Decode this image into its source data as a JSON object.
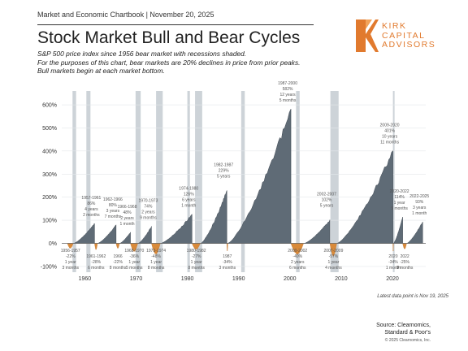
{
  "header": {
    "chartbook_line": "Market and Economic Chartbook | November 20, 2025",
    "title": "Stock Market Bull and Bear Cycles",
    "subtitle_lines": [
      "S&P 500 price index since 1956 bear market with recessions shaded.",
      "For the purposes of this chart, bear markets are 20% declines in price from prior peaks.",
      "Bull markets begin at each market bottom."
    ]
  },
  "logo": {
    "lines": [
      "KIRK",
      "CAPITAL",
      "ADVISORS"
    ]
  },
  "footnote": "Latest data point is Nov 19, 2025",
  "source": {
    "lines": [
      "Source: Clearnomics,",
      "Standard & Poor's"
    ],
    "copyright": "© 2025 Clearnomics, Inc."
  },
  "colors": {
    "bull": "#5f6b76",
    "bear": "#d98a3a",
    "recession": "#cdd3d8",
    "accent": "#e17a2e"
  },
  "chart_data": {
    "type": "area",
    "ylim": [
      -125,
      660
    ],
    "xlim": [
      1955.5,
      2026.5
    ],
    "y_ticks": [
      -100,
      0,
      100,
      200,
      300,
      400,
      500,
      600
    ],
    "y_tick_labels": [
      "-100%",
      "0%",
      "100%",
      "200%",
      "300%",
      "400%",
      "500%",
      "600%"
    ],
    "x_ticks": [
      1960,
      1970,
      1980,
      1990,
      2000,
      2010,
      2020
    ],
    "x_tick_labels": [
      "1960",
      "1970",
      "1980",
      "1990",
      "2000",
      "2010",
      "2020"
    ],
    "recessions": [
      [
        1957.6,
        1958.3
      ],
      [
        1960.3,
        1961.1
      ],
      [
        1969.9,
        1970.9
      ],
      [
        1973.9,
        1975.2
      ],
      [
        1980.0,
        1980.5
      ],
      [
        1981.5,
        1982.9
      ],
      [
        1990.5,
        1991.2
      ],
      [
        2001.2,
        2001.9
      ],
      [
        2007.9,
        2009.5
      ],
      [
        2020.1,
        2020.4
      ]
    ],
    "bull_markets": [
      {
        "start": 1957.8,
        "end": 1961.9,
        "peak": 86,
        "label_lines": [
          "1957-1961",
          "86%",
          "4 years",
          "2 months"
        ]
      },
      {
        "start": 1962.5,
        "end": 1966.1,
        "peak": 80,
        "label_lines": [
          "1962-1966",
          "80%",
          "3 years",
          "7 months"
        ]
      },
      {
        "start": 1966.8,
        "end": 1968.9,
        "peak": 48,
        "label_lines": [
          "1966-1968",
          "48%",
          "2 years",
          "1 month"
        ]
      },
      {
        "start": 1970.4,
        "end": 1973.0,
        "peak": 74,
        "label_lines": [
          "1970-1973",
          "74%",
          "2 years",
          "9 months"
        ]
      },
      {
        "start": 1974.8,
        "end": 1980.9,
        "peak": 126,
        "label_lines": [
          "1974-1980",
          "126%",
          "6 years",
          "1 month"
        ]
      },
      {
        "start": 1982.6,
        "end": 1987.7,
        "peak": 229,
        "label_lines": [
          "1982-1987",
          "229%",
          "5 years"
        ]
      },
      {
        "start": 1987.9,
        "end": 2000.2,
        "peak": 582,
        "label_lines": [
          "1987-2000",
          "582%",
          "12 years",
          "5 months"
        ]
      },
      {
        "start": 2002.8,
        "end": 2007.8,
        "peak": 102,
        "label_lines": [
          "2002-2007",
          "102%",
          "5 years"
        ]
      },
      {
        "start": 2009.2,
        "end": 2020.1,
        "peak": 401,
        "label_lines": [
          "2009-2020",
          "401%",
          "10 years",
          "11 months"
        ]
      },
      {
        "start": 2020.2,
        "end": 2022.0,
        "peak": 114,
        "label_lines": [
          "2020-2022",
          "114%",
          "1 year",
          "9 months"
        ]
      },
      {
        "start": 2022.8,
        "end": 2025.9,
        "peak": 93,
        "label_lines": [
          "2022-2025",
          "93%",
          "3 years",
          "1 month"
        ]
      }
    ],
    "bear_markets": [
      {
        "start": 1956.6,
        "end": 1957.8,
        "trough": -22,
        "label_lines": [
          "1956-1957",
          "-22%",
          "1 year",
          "3 months"
        ]
      },
      {
        "start": 1961.9,
        "end": 1962.5,
        "trough": -28,
        "label_lines": [
          "1961-1962",
          "-28%",
          "6 months"
        ]
      },
      {
        "start": 1966.1,
        "end": 1966.8,
        "trough": -22,
        "label_lines": [
          "1966",
          "-22%",
          "8 months"
        ]
      },
      {
        "start": 1968.9,
        "end": 1970.4,
        "trough": -36,
        "label_lines": [
          "1968-1970",
          "-36%",
          "1 year",
          "5 months"
        ]
      },
      {
        "start": 1973.0,
        "end": 1974.8,
        "trough": -48,
        "label_lines": [
          "1973-1974",
          "-48%",
          "1 year",
          "8 months"
        ]
      },
      {
        "start": 1980.9,
        "end": 1982.6,
        "trough": -27,
        "label_lines": [
          "1980-1982",
          "-27%",
          "1 year",
          "8 months"
        ]
      },
      {
        "start": 1987.7,
        "end": 1987.9,
        "trough": -34,
        "label_lines": [
          "1987",
          "-34%",
          "3 months"
        ]
      },
      {
        "start": 2000.2,
        "end": 2002.8,
        "trough": -49,
        "label_lines": [
          "2000-2002",
          "-49%",
          "2 years",
          "6 months"
        ]
      },
      {
        "start": 2007.8,
        "end": 2009.2,
        "trough": -57,
        "label_lines": [
          "2007-2009",
          "-57%",
          "1 year",
          "4 months"
        ]
      },
      {
        "start": 2020.1,
        "end": 2020.2,
        "trough": -34,
        "label_lines": [
          "2020",
          "-34%",
          "1 month"
        ]
      },
      {
        "start": 2022.0,
        "end": 2022.8,
        "trough": -25,
        "label_lines": [
          "2022",
          "-25%",
          "9 months"
        ]
      }
    ]
  }
}
